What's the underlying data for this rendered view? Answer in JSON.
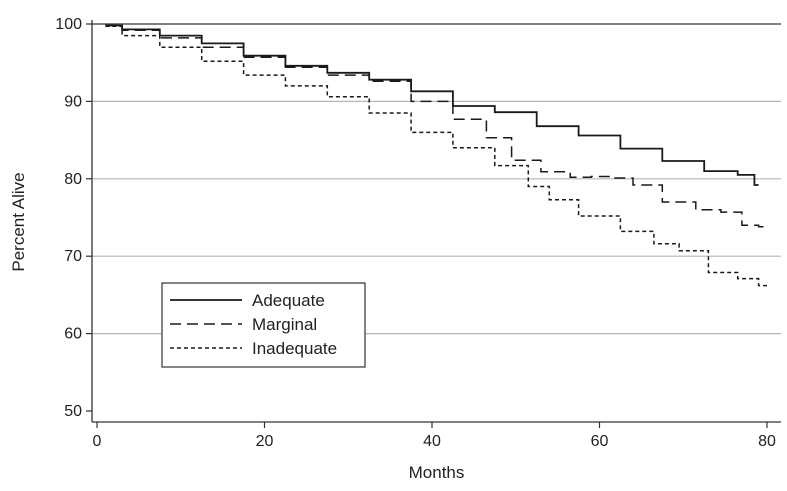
{
  "chart_data": {
    "type": "line",
    "title": "",
    "xlabel": "Months",
    "ylabel": "Percent Alive",
    "xlim": [
      0,
      80
    ],
    "ylim": [
      50,
      100
    ],
    "xticks": [
      0,
      20,
      40,
      60,
      80
    ],
    "yticks": [
      50,
      60,
      70,
      80,
      90,
      100
    ],
    "grid": "horizontal",
    "legend_position": "lower-left",
    "series": [
      {
        "name": "Adequate",
        "style": "solid",
        "color": "#1a1a1a",
        "x": [
          1,
          5,
          10,
          15,
          20,
          25,
          30,
          35,
          40,
          45,
          50,
          55,
          60,
          65,
          70,
          75,
          78,
          79
        ],
        "y": [
          99.8,
          99.3,
          98.5,
          97.5,
          95.9,
          94.6,
          93.7,
          92.8,
          91.3,
          89.4,
          88.6,
          86.8,
          85.6,
          83.9,
          82.3,
          81.0,
          80.5,
          79.2
        ]
      },
      {
        "name": "Marginal",
        "style": "dashed",
        "color": "#1a1a1a",
        "x": [
          1,
          5,
          10,
          15,
          20,
          25,
          30,
          35,
          40,
          45,
          48,
          51,
          55,
          58,
          60,
          63,
          65,
          70,
          73,
          76,
          78,
          80
        ],
        "y": [
          99.8,
          99.2,
          98.2,
          97.0,
          95.7,
          94.4,
          93.4,
          92.6,
          90.0,
          87.7,
          85.3,
          82.4,
          80.9,
          80.2,
          80.3,
          80.1,
          79.2,
          77.0,
          76.0,
          75.7,
          74.0,
          73.8
        ]
      },
      {
        "name": "Inadequate",
        "style": "dotted",
        "color": "#1a1a1a",
        "x": [
          1,
          5,
          10,
          15,
          20,
          25,
          30,
          35,
          40,
          45,
          50,
          53,
          55,
          60,
          65,
          68,
          71,
          75,
          78,
          80
        ],
        "y": [
          99.7,
          98.5,
          97.0,
          95.2,
          93.4,
          92.0,
          90.6,
          88.5,
          86.0,
          84.0,
          81.7,
          79.0,
          77.3,
          75.2,
          73.2,
          71.6,
          70.7,
          67.9,
          67.1,
          66.2
        ]
      }
    ]
  }
}
